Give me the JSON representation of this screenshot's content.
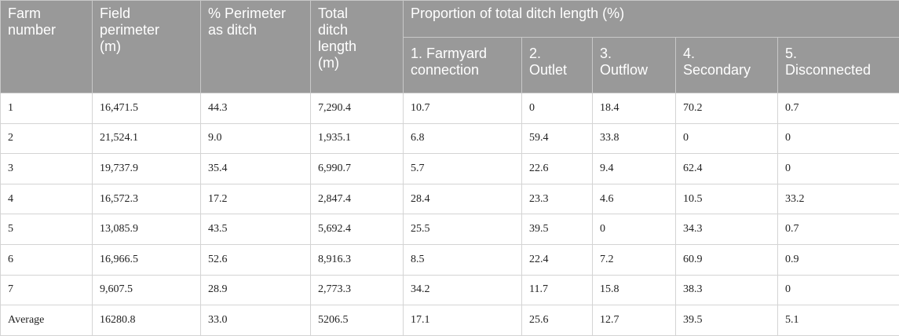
{
  "table": {
    "columns": [
      "Farm number",
      "Field perimeter (m)",
      "% Perimeter as ditch",
      "Total ditch length (m)"
    ],
    "group_title": "Proportion of total ditch length (%)",
    "subcolumns": [
      "1. Farmyard connection",
      "2. Outlet",
      "3. Outflow",
      "4. Secondary",
      "5. Disconnected"
    ],
    "rows": [
      [
        "1",
        "16,471.5",
        "44.3",
        "7,290.4",
        "10.7",
        "0",
        "18.4",
        "70.2",
        "0.7"
      ],
      [
        "2",
        "21,524.1",
        "9.0",
        "1,935.1",
        "6.8",
        "59.4",
        "33.8",
        "0",
        "0"
      ],
      [
        "3",
        "19,737.9",
        "35.4",
        "6,990.7",
        "5.7",
        "22.6",
        "9.4",
        "62.4",
        "0"
      ],
      [
        "4",
        "16,572.3",
        "17.2",
        "2,847.4",
        "28.4",
        "23.3",
        "4.6",
        "10.5",
        "33.2"
      ],
      [
        "5",
        "13,085.9",
        "43.5",
        "5,692.4",
        "25.5",
        "39.5",
        "0",
        "34.3",
        "0.7"
      ],
      [
        "6",
        "16,966.5",
        "52.6",
        "8,916.3",
        "8.5",
        "22.4",
        "7.2",
        "60.9",
        "0.9"
      ],
      [
        "7",
        "9,607.5",
        "28.9",
        "2,773.3",
        "34.2",
        "11.7",
        "15.8",
        "38.3",
        "0"
      ],
      [
        "Average",
        "16280.8",
        "33.0",
        "5206.5",
        "17.1",
        "25.6",
        "12.7",
        "39.5",
        "5.1"
      ]
    ]
  }
}
